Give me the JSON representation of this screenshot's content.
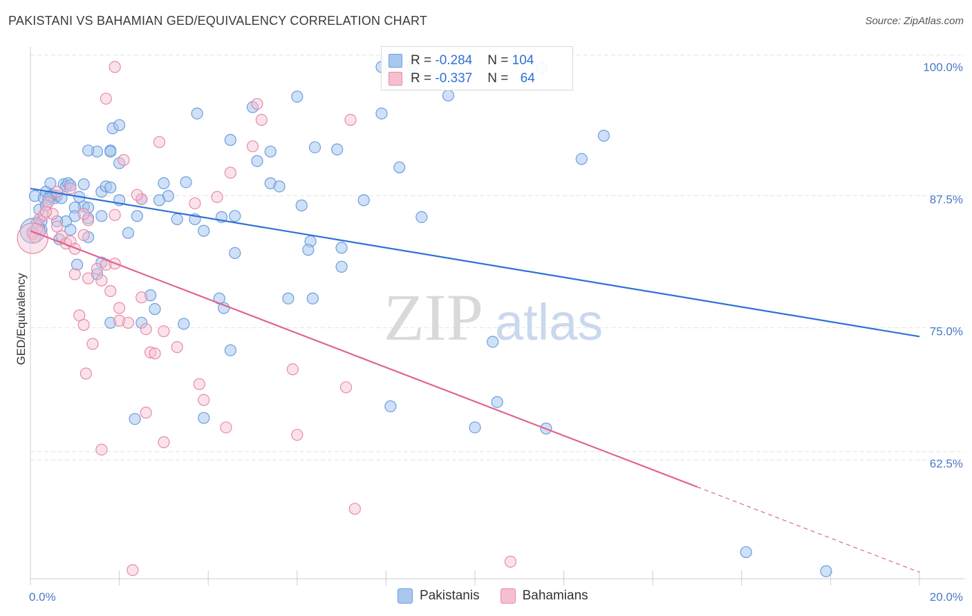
{
  "header": {
    "title": "PAKISTANI VS BAHAMIAN GED/EQUIVALENCY CORRELATION CHART",
    "source": "Source: ZipAtlas.com"
  },
  "watermark": {
    "zip": "ZIP",
    "atlas": "atlas"
  },
  "legend": {
    "rows": [
      {
        "r_label": "R = ",
        "r_value": "-0.284",
        "n_label": "N = ",
        "n_value": "104"
      },
      {
        "r_label": "R = ",
        "r_value": "-0.337",
        "n_label": "N = ",
        "n_value": "64"
      }
    ]
  },
  "bottom_legend": {
    "items": [
      "Pakistanis",
      "Bahamians"
    ]
  },
  "colors": {
    "blue_fill": "#aac7ee",
    "blue_stroke": "#6a9ee0",
    "blue_line": "#2e6fd6",
    "pink_fill": "#f6bfd0",
    "pink_stroke": "#e68aa8",
    "pink_line": "#e0648e",
    "grid": "#e2e2e2",
    "axis_text": "#4a78c8"
  },
  "chart_data": {
    "type": "scatter",
    "title": "PAKISTANI VS BAHAMIAN GED/EQUIVALENCY CORRELATION CHART",
    "xlabel": "",
    "ylabel": "GED/Equivalency",
    "xlim": [
      0,
      20
    ],
    "ylim": [
      51,
      102
    ],
    "x_ticks": [
      "0.0%",
      "20.0%"
    ],
    "y_ticks": [
      {
        "value": 100,
        "label": "100.0%"
      },
      {
        "value": 87.5,
        "label": "87.5%"
      },
      {
        "value": 75,
        "label": "75.0%"
      },
      {
        "value": 62.5,
        "label": "62.5%"
      }
    ],
    "grid": "horizontal dashed",
    "legend_placement": "top-center",
    "series": [
      {
        "name": "Pakistanis",
        "trend": {
          "x": [
            0,
            20
          ],
          "y": [
            88.5,
            74.5
          ],
          "dashed_from": null
        },
        "points": [
          [
            0.1,
            87.8
          ],
          [
            0.2,
            86.5
          ],
          [
            0.3,
            87.6
          ],
          [
            0.35,
            88.2
          ],
          [
            0.15,
            85.3
          ],
          [
            0.25,
            85.4
          ],
          [
            0.05,
            84.4
          ],
          [
            0.5,
            87.9
          ],
          [
            0.55,
            87.6
          ],
          [
            0.6,
            87.8
          ],
          [
            0.45,
            87.8
          ],
          [
            0.4,
            87.5
          ],
          [
            0.7,
            87.6
          ],
          [
            0.75,
            88.9
          ],
          [
            0.8,
            88.7
          ],
          [
            0.85,
            89.0
          ],
          [
            0.9,
            88.8
          ],
          [
            1.1,
            87.7
          ],
          [
            1.2,
            86.8
          ],
          [
            1.3,
            86.7
          ],
          [
            1.0,
            86.7
          ],
          [
            0.9,
            84.6
          ],
          [
            1.0,
            85.9
          ],
          [
            1.3,
            85.7
          ],
          [
            0.8,
            85.4
          ],
          [
            0.45,
            89.0
          ],
          [
            1.8,
            92.1
          ],
          [
            1.8,
            92.0
          ],
          [
            2.0,
            90.9
          ],
          [
            1.5,
            92.0
          ],
          [
            1.3,
            92.1
          ],
          [
            1.6,
            88.2
          ],
          [
            1.7,
            88.7
          ],
          [
            1.8,
            88.6
          ],
          [
            2.0,
            87.4
          ],
          [
            2.5,
            87.5
          ],
          [
            3.1,
            87.8
          ],
          [
            2.9,
            87.4
          ],
          [
            2.4,
            85.9
          ],
          [
            3.3,
            85.6
          ],
          [
            3.7,
            85.6
          ],
          [
            3.5,
            89.1
          ],
          [
            3.0,
            89.0
          ],
          [
            1.85,
            94.2
          ],
          [
            2.0,
            94.5
          ],
          [
            3.75,
            95.6
          ],
          [
            4.5,
            93.1
          ],
          [
            5.0,
            96.2
          ],
          [
            6.0,
            97.2
          ],
          [
            5.4,
            89.0
          ],
          [
            5.6,
            88.7
          ],
          [
            5.1,
            91.1
          ],
          [
            4.3,
            85.8
          ],
          [
            4.6,
            85.9
          ],
          [
            3.9,
            84.5
          ],
          [
            6.1,
            86.9
          ],
          [
            6.3,
            83.5
          ],
          [
            6.25,
            82.7
          ],
          [
            7.0,
            82.9
          ],
          [
            7.0,
            81.1
          ],
          [
            6.4,
            92.4
          ],
          [
            6.9,
            92.2
          ],
          [
            7.9,
            95.6
          ],
          [
            8.3,
            90.5
          ],
          [
            8.8,
            85.8
          ],
          [
            9.4,
            97.3
          ],
          [
            7.9,
            100.0
          ],
          [
            8.6,
            100.1
          ],
          [
            5.4,
            92.0
          ],
          [
            4.6,
            82.4
          ],
          [
            2.7,
            78.4
          ],
          [
            2.8,
            77.1
          ],
          [
            4.25,
            78.1
          ],
          [
            4.35,
            77.2
          ],
          [
            3.45,
            75.7
          ],
          [
            6.35,
            78.1
          ],
          [
            5.8,
            78.1
          ],
          [
            4.5,
            73.2
          ],
          [
            1.8,
            75.8
          ],
          [
            2.5,
            75.8
          ],
          [
            1.5,
            80.4
          ],
          [
            1.6,
            81.5
          ],
          [
            3.9,
            66.8
          ],
          [
            2.35,
            66.7
          ],
          [
            10.0,
            65.9
          ],
          [
            8.1,
            67.9
          ],
          [
            10.5,
            68.3
          ],
          [
            11.6,
            65.8
          ],
          [
            10.4,
            74.0
          ],
          [
            12.4,
            91.3
          ],
          [
            12.9,
            93.5
          ],
          [
            16.1,
            54.1
          ],
          [
            17.9,
            52.3
          ],
          [
            1.3,
            83.9
          ],
          [
            0.65,
            83.7
          ],
          [
            0.35,
            86.9
          ],
          [
            0.25,
            84.6
          ],
          [
            1.05,
            81.3
          ],
          [
            1.6,
            85.9
          ],
          [
            2.2,
            84.3
          ],
          [
            7.5,
            87.4
          ],
          [
            1.2,
            88.9
          ],
          [
            11.5,
            99.9
          ],
          [
            0.6,
            85.4
          ]
        ]
      },
      {
        "name": "Bahamians",
        "trend": {
          "x": [
            0,
            20
          ],
          "y": [
            84.5,
            52.2
          ],
          "dashed_from": 15
        },
        "points": [
          [
            0.05,
            84.2
          ],
          [
            0.1,
            83.9
          ],
          [
            0.15,
            84.7
          ],
          [
            0.2,
            85.6
          ],
          [
            0.3,
            86.0
          ],
          [
            0.4,
            87.2
          ],
          [
            0.5,
            86.1
          ],
          [
            0.6,
            84.9
          ],
          [
            0.7,
            84.0
          ],
          [
            0.8,
            83.3
          ],
          [
            0.9,
            83.5
          ],
          [
            1.0,
            82.8
          ],
          [
            1.2,
            84.1
          ],
          [
            1.3,
            85.5
          ],
          [
            1.5,
            80.9
          ],
          [
            1.7,
            81.3
          ],
          [
            1.9,
            81.4
          ],
          [
            2.0,
            76.0
          ],
          [
            2.2,
            75.8
          ],
          [
            2.5,
            78.2
          ],
          [
            2.6,
            75.2
          ],
          [
            2.7,
            73.0
          ],
          [
            2.8,
            72.9
          ],
          [
            1.3,
            80.0
          ],
          [
            1.0,
            80.4
          ],
          [
            1.1,
            76.5
          ],
          [
            1.2,
            75.6
          ],
          [
            1.4,
            73.8
          ],
          [
            1.25,
            71.0
          ],
          [
            1.6,
            79.8
          ],
          [
            1.8,
            78.8
          ],
          [
            2.0,
            77.2
          ],
          [
            1.9,
            100.0
          ],
          [
            1.7,
            97.0
          ],
          [
            2.1,
            91.2
          ],
          [
            2.9,
            92.9
          ],
          [
            2.5,
            87.5
          ],
          [
            3.7,
            87.1
          ],
          [
            4.2,
            87.7
          ],
          [
            4.5,
            90.0
          ],
          [
            5.0,
            92.5
          ],
          [
            5.2,
            95.0
          ],
          [
            5.1,
            96.5
          ],
          [
            7.2,
            95.0
          ],
          [
            3.0,
            75.0
          ],
          [
            3.3,
            73.5
          ],
          [
            3.8,
            70.0
          ],
          [
            3.9,
            68.5
          ],
          [
            4.4,
            65.9
          ],
          [
            3.0,
            64.5
          ],
          [
            2.6,
            67.3
          ],
          [
            5.9,
            71.4
          ],
          [
            6.0,
            65.2
          ],
          [
            7.1,
            69.7
          ],
          [
            7.3,
            58.2
          ],
          [
            10.8,
            53.2
          ],
          [
            2.3,
            52.4
          ],
          [
            1.6,
            63.8
          ],
          [
            2.4,
            87.9
          ],
          [
            1.9,
            86.0
          ],
          [
            0.35,
            86.3
          ],
          [
            0.6,
            88.2
          ],
          [
            0.9,
            88.5
          ],
          [
            1.2,
            86.1
          ]
        ]
      }
    ]
  }
}
